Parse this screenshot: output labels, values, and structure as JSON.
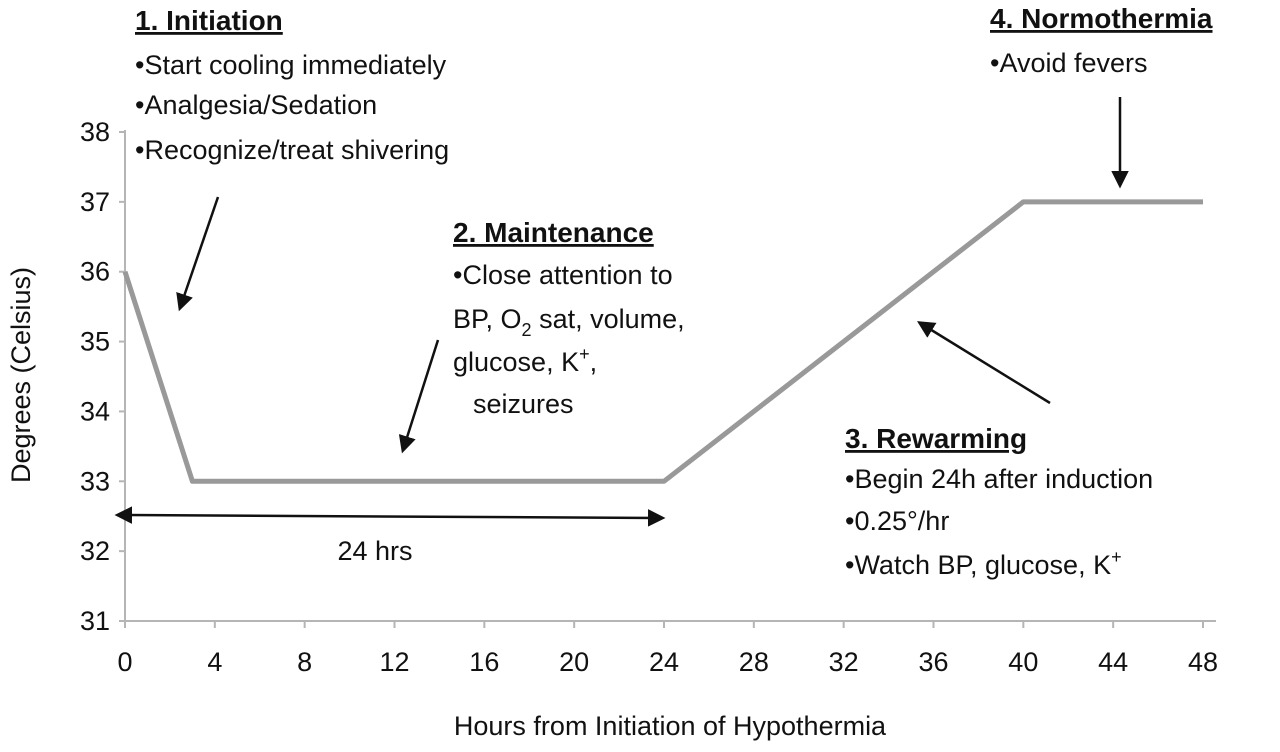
{
  "chart_data": {
    "type": "line",
    "xlabel": "Hours from Initiation of Hypothermia",
    "ylabel": "Degrees (Celsius)",
    "xlim": [
      0,
      48
    ],
    "ylim": [
      31,
      38
    ],
    "x_ticks": [
      "0",
      "4",
      "8",
      "12",
      "16",
      "20",
      "24",
      "28",
      "32",
      "36",
      "40",
      "44",
      "48"
    ],
    "y_ticks": [
      "31",
      "32",
      "33",
      "34",
      "35",
      "36",
      "37",
      "38"
    ],
    "grid": false,
    "series": [
      {
        "color": "#999999",
        "x": [
          0,
          3,
          24,
          40,
          48
        ],
        "y": [
          36,
          33,
          33,
          37,
          37
        ]
      }
    ],
    "span_label": "24 hrs",
    "span_hours": [
      0,
      24
    ],
    "phases": [
      {
        "heading": "1. Initiation",
        "bullets": [
          "•Start cooling immediately",
          "•Analgesia/Sedation",
          "•Recognize/treat shivering"
        ]
      },
      {
        "heading": "2. Maintenance",
        "bullets": [
          "•Close attention to",
          "BP, O",
          "2",
          " sat, volume,",
          "glucose, K",
          "+",
          ",",
          "seizures"
        ]
      },
      {
        "heading": "3. Rewarming",
        "bullets": [
          "•Begin 24h after induction",
          "•0.25°/hr",
          "•Watch BP, glucose, K",
          "+"
        ]
      },
      {
        "heading": "4. Normothermia",
        "bullets": [
          "•Avoid fevers"
        ]
      }
    ]
  }
}
